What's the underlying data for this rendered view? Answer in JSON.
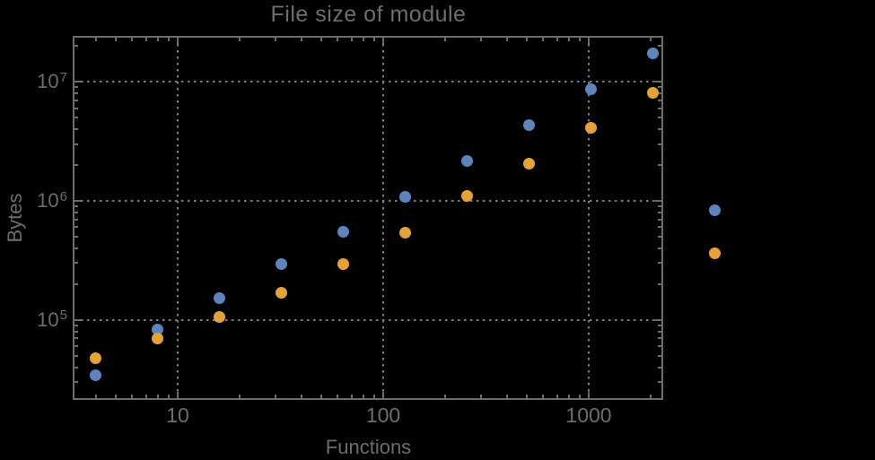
{
  "title": "File size of module",
  "x_axis_label": "Functions",
  "y_axis_label": "Bytes",
  "colors": {
    "background": "#000000",
    "frame": "#6c6c6c",
    "gridline": "#7e7e7e",
    "text": "#6d6d6d",
    "series_blue": "#5c84bd",
    "series_orange": "#e7a233"
  },
  "axes": {
    "x": {
      "scale": "log",
      "min": 3.12,
      "max": 2285,
      "major_ticks": [
        {
          "value": 10,
          "label": "10"
        },
        {
          "value": 100,
          "label": "100"
        },
        {
          "value": 1000,
          "label": "1000"
        }
      ]
    },
    "y": {
      "scale": "log",
      "min": 21500,
      "max": 23900000,
      "major_ticks": [
        {
          "value": 100000,
          "base": "10",
          "exp": "5"
        },
        {
          "value": 1000000,
          "base": "10",
          "exp": "6"
        },
        {
          "value": 10000000,
          "base": "10",
          "exp": "7"
        }
      ]
    }
  },
  "chart_data": {
    "type": "scatter",
    "title": "File size of module",
    "xlabel": "Functions",
    "ylabel": "Bytes",
    "xscale": "log",
    "yscale": "log",
    "xlim": [
      3.12,
      2285
    ],
    "ylim": [
      21500,
      23900000
    ],
    "grid": "dotted gray lines at powers of 10, frame ticks on all four sides",
    "legend": "none",
    "plot_range_clipping": false,
    "note": "last x value (4096) plotted outside right frame edge",
    "x": [
      4,
      8,
      16,
      32,
      64,
      128,
      256,
      512,
      1024,
      2048,
      4096
    ],
    "series": [
      {
        "name": "blue",
        "color": "#5c84bd",
        "y": [
          34000,
          83000,
          152000,
          295000,
          550000,
          1090000,
          2150000,
          4300000,
          8600000,
          17200000,
          830000
        ]
      },
      {
        "name": "orange",
        "color": "#e7a233",
        "y": [
          48000,
          70000,
          105000,
          170000,
          295000,
          540000,
          1100000,
          2050000,
          4100000,
          8100000,
          365000
        ]
      }
    ]
  }
}
